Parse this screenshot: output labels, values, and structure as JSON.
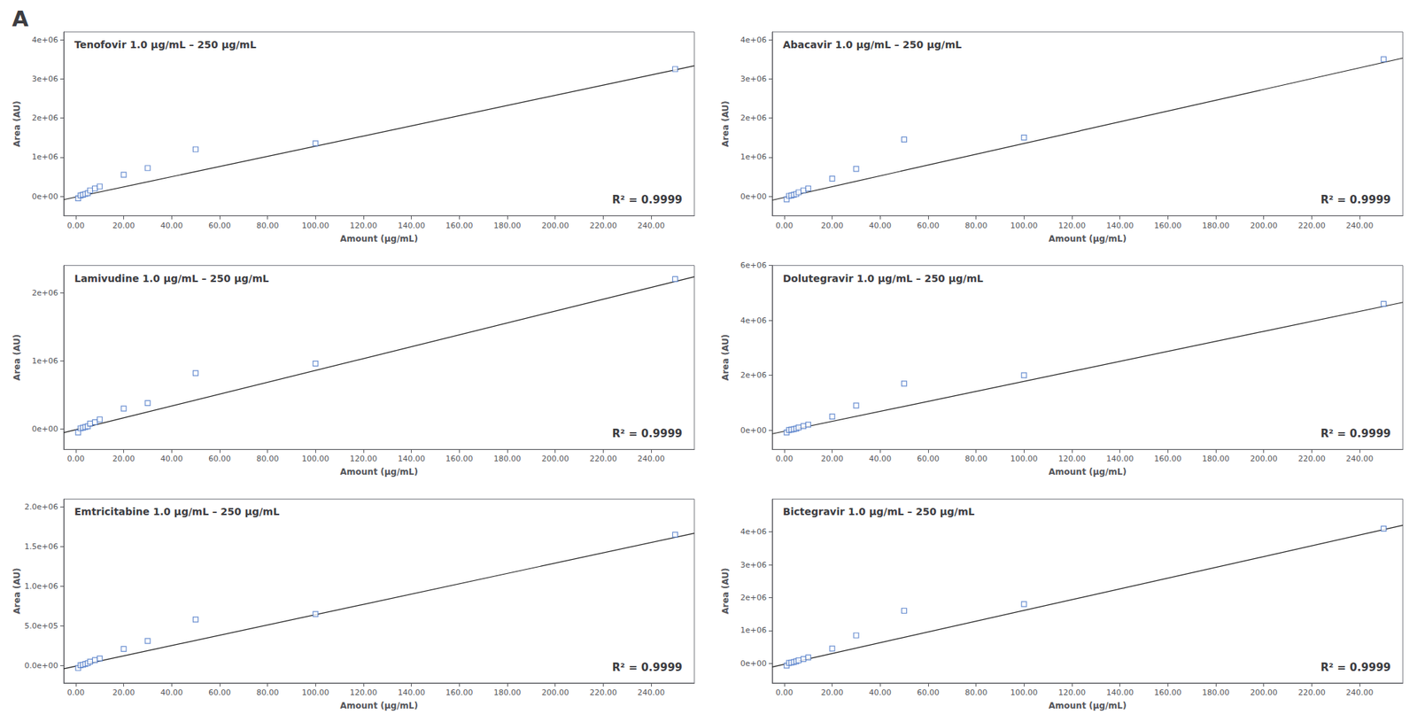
{
  "title": "A",
  "chart_data": [
    {
      "type": "scatter",
      "title": "Tenofovir 1.0 μg/mL – 250 μg/mL",
      "x_label": "Amount (μg/mL)",
      "y_label": "Area (AU)",
      "annotation": "R² = 0.9999",
      "grid": false,
      "xlim": [
        -5,
        258
      ],
      "xticks": [
        {
          "value": 0,
          "label": "0.00"
        },
        {
          "value": 20,
          "label": "20.00"
        },
        {
          "value": 40,
          "label": "40.00"
        },
        {
          "value": 60,
          "label": "60.00"
        },
        {
          "value": 80,
          "label": "80.00"
        },
        {
          "value": 100,
          "label": "100.00"
        },
        {
          "value": 120,
          "label": "120.00"
        },
        {
          "value": 140,
          "label": "140.00"
        },
        {
          "value": 160,
          "label": "160.00"
        },
        {
          "value": 180,
          "label": "180.00"
        },
        {
          "value": 200,
          "label": "200.00"
        },
        {
          "value": 220,
          "label": "220.00"
        },
        {
          "value": 240,
          "label": "240.00"
        }
      ],
      "ylim": [
        -500000,
        4200000
      ],
      "yticks": [
        {
          "value": 0,
          "label": "0e+00"
        },
        {
          "value": 1000000,
          "label": "1e+06"
        },
        {
          "value": 2000000,
          "label": "2e+06"
        },
        {
          "value": 3000000,
          "label": "3e+06"
        },
        {
          "value": 4000000,
          "label": "4e+06"
        }
      ],
      "series": [
        {
          "type": "line",
          "color": "#1a1a1a",
          "line_style": "solid",
          "x": [
            -5,
            258
          ],
          "values": [
            -85000,
            3334000
          ]
        },
        {
          "type": "scatter",
          "marker": "square",
          "color": "#4472C4",
          "x": [
            1.0,
            2.0,
            3.0,
            4.0,
            5.0,
            6.0,
            8.0,
            10.0,
            20.0,
            30.0,
            50.0,
            100.0,
            250.0
          ],
          "values": [
            -50000,
            20000,
            40000,
            60000,
            80000,
            150000,
            200000,
            250000,
            550000,
            720000,
            1200000,
            1350000,
            3250000
          ]
        }
      ]
    },
    {
      "type": "scatter",
      "title": "Abacavir 1.0 μg/mL – 250 μg/mL",
      "x_label": "Amount (μg/mL)",
      "y_label": "Area (AU)",
      "annotation": "R² = 0.9999",
      "grid": false,
      "xlim": [
        -5,
        258
      ],
      "xticks": [
        {
          "value": 0,
          "label": "0.00"
        },
        {
          "value": 20,
          "label": "20.00"
        },
        {
          "value": 40,
          "label": "40.00"
        },
        {
          "value": 60,
          "label": "60.00"
        },
        {
          "value": 80,
          "label": "80.00"
        },
        {
          "value": 100,
          "label": "100.00"
        },
        {
          "value": 120,
          "label": "120.00"
        },
        {
          "value": 140,
          "label": "140.00"
        },
        {
          "value": 160,
          "label": "160.00"
        },
        {
          "value": 180,
          "label": "180.00"
        },
        {
          "value": 200,
          "label": "200.00"
        },
        {
          "value": 220,
          "label": "220.00"
        },
        {
          "value": 240,
          "label": "240.00"
        }
      ],
      "ylim": [
        -500000,
        4200000
      ],
      "yticks": [
        {
          "value": 0,
          "label": "0e+00"
        },
        {
          "value": 1000000,
          "label": "1e+06"
        },
        {
          "value": 2000000,
          "label": "2e+06"
        },
        {
          "value": 3000000,
          "label": "3e+06"
        },
        {
          "value": 4000000,
          "label": "4e+06"
        }
      ],
      "series": [
        {
          "type": "line",
          "color": "#1a1a1a",
          "line_style": "solid",
          "x": [
            -5,
            258
          ],
          "values": [
            -99000,
            3530400
          ]
        },
        {
          "type": "scatter",
          "marker": "square",
          "color": "#4472C4",
          "x": [
            1.0,
            2.0,
            3.0,
            4.0,
            5.0,
            6.0,
            8.0,
            10.0,
            20.0,
            30.0,
            50.0,
            100.0,
            250.0
          ],
          "values": [
            -80000,
            10000,
            20000,
            40000,
            60000,
            100000,
            150000,
            200000,
            450000,
            700000,
            1450000,
            1500000,
            3500000
          ]
        }
      ]
    },
    {
      "type": "scatter",
      "title": "Lamivudine 1.0 μg/mL – 250 μg/mL",
      "x_label": "Amount (μg/mL)",
      "y_label": "Area (AU)",
      "annotation": "R² = 0.9999",
      "grid": false,
      "xlim": [
        -5,
        258
      ],
      "xticks": [
        {
          "value": 0,
          "label": "0.00"
        },
        {
          "value": 20,
          "label": "20.00"
        },
        {
          "value": 40,
          "label": "40.00"
        },
        {
          "value": 60,
          "label": "60.00"
        },
        {
          "value": 80,
          "label": "80.00"
        },
        {
          "value": 100,
          "label": "100.00"
        },
        {
          "value": 120,
          "label": "120.00"
        },
        {
          "value": 140,
          "label": "140.00"
        },
        {
          "value": 160,
          "label": "160.00"
        },
        {
          "value": 180,
          "label": "180.00"
        },
        {
          "value": 200,
          "label": "200.00"
        },
        {
          "value": 220,
          "label": "220.00"
        },
        {
          "value": 240,
          "label": "240.00"
        }
      ],
      "ylim": [
        -300000,
        2400000
      ],
      "yticks": [
        {
          "value": 0,
          "label": "0e+00"
        },
        {
          "value": 1000000,
          "label": "1e+06"
        },
        {
          "value": 2000000,
          "label": "2e+06"
        }
      ],
      "series": [
        {
          "type": "line",
          "color": "#1a1a1a",
          "line_style": "solid",
          "x": [
            -5,
            258
          ],
          "values": [
            -53500,
            2234600
          ]
        },
        {
          "type": "scatter",
          "marker": "square",
          "color": "#4472C4",
          "x": [
            1.0,
            2.0,
            3.0,
            4.0,
            5.0,
            6.0,
            8.0,
            10.0,
            20.0,
            30.0,
            50.0,
            100.0,
            250.0
          ],
          "values": [
            -50000,
            10000,
            20000,
            30000,
            40000,
            80000,
            100000,
            140000,
            300000,
            380000,
            820000,
            960000,
            2200000
          ]
        }
      ]
    },
    {
      "type": "scatter",
      "title": "Dolutegravir 1.0 μg/mL – 250 μg/mL",
      "x_label": "Amount (μg/mL)",
      "y_label": "Area (AU)",
      "annotation": "R² = 0.9999",
      "grid": false,
      "xlim": [
        -5,
        258
      ],
      "xticks": [
        {
          "value": 0,
          "label": "0.00"
        },
        {
          "value": 20,
          "label": "20.00"
        },
        {
          "value": 40,
          "label": "40.00"
        },
        {
          "value": 60,
          "label": "60.00"
        },
        {
          "value": 80,
          "label": "80.00"
        },
        {
          "value": 100,
          "label": "100.00"
        },
        {
          "value": 120,
          "label": "120.00"
        },
        {
          "value": 140,
          "label": "140.00"
        },
        {
          "value": 160,
          "label": "160.00"
        },
        {
          "value": 180,
          "label": "180.00"
        },
        {
          "value": 200,
          "label": "200.00"
        },
        {
          "value": 220,
          "label": "220.00"
        },
        {
          "value": 240,
          "label": "240.00"
        }
      ],
      "ylim": [
        -700000,
        6000000
      ],
      "yticks": [
        {
          "value": 0,
          "label": "0e+00"
        },
        {
          "value": 2000000,
          "label": "2e+06"
        },
        {
          "value": 4000000,
          "label": "4e+06"
        },
        {
          "value": 6000000,
          "label": "6e+06"
        }
      ],
      "series": [
        {
          "type": "line",
          "color": "#1a1a1a",
          "line_style": "solid",
          "x": [
            -5,
            258
          ],
          "values": [
            -131000,
            4655600
          ]
        },
        {
          "type": "scatter",
          "marker": "square",
          "color": "#4472C4",
          "x": [
            1.0,
            2.0,
            3.0,
            4.0,
            5.0,
            6.0,
            8.0,
            10.0,
            20.0,
            30.0,
            50.0,
            100.0,
            250.0
          ],
          "values": [
            -80000,
            10000,
            20000,
            40000,
            60000,
            100000,
            150000,
            200000,
            500000,
            900000,
            1700000,
            2000000,
            4600000
          ]
        }
      ]
    },
    {
      "type": "scatter",
      "title": "Emtricitabine 1.0 μg/mL – 250 μg/mL",
      "x_label": "Amount (μg/mL)",
      "y_label": "Area (AU)",
      "annotation": "R² = 0.9999",
      "grid": false,
      "xlim": [
        -5,
        258
      ],
      "xticks": [
        {
          "value": 0,
          "label": "0.00"
        },
        {
          "value": 20,
          "label": "20.00"
        },
        {
          "value": 40,
          "label": "40.00"
        },
        {
          "value": 60,
          "label": "60.00"
        },
        {
          "value": 80,
          "label": "80.00"
        },
        {
          "value": 100,
          "label": "100.00"
        },
        {
          "value": 120,
          "label": "120.00"
        },
        {
          "value": 140,
          "label": "140.00"
        },
        {
          "value": 160,
          "label": "160.00"
        },
        {
          "value": 180,
          "label": "180.00"
        },
        {
          "value": 200,
          "label": "200.00"
        },
        {
          "value": 220,
          "label": "220.00"
        },
        {
          "value": 240,
          "label": "240.00"
        }
      ],
      "ylim": [
        -220000,
        2100000
      ],
      "yticks": [
        {
          "value": 0,
          "label": "0.0e+00"
        },
        {
          "value": 500000,
          "label": "5.0e+05"
        },
        {
          "value": 1000000,
          "label": "1.0e+06"
        },
        {
          "value": 1500000,
          "label": "1.5e+06"
        },
        {
          "value": 2000000,
          "label": "2.0e+06"
        }
      ],
      "series": [
        {
          "type": "line",
          "color": "#1a1a1a",
          "line_style": "solid",
          "x": [
            -5,
            258
          ],
          "values": [
            -40500,
            1669000
          ]
        },
        {
          "type": "scatter",
          "marker": "square",
          "color": "#4472C4",
          "x": [
            1.0,
            2.0,
            3.0,
            4.0,
            5.0,
            6.0,
            8.0,
            10.0,
            20.0,
            30.0,
            50.0,
            100.0,
            250.0
          ],
          "values": [
            -30000,
            5000,
            10000,
            20000,
            30000,
            50000,
            70000,
            90000,
            210000,
            310000,
            580000,
            650000,
            1650000
          ]
        }
      ]
    },
    {
      "type": "scatter",
      "title": "Bictegravir 1.0 μg/mL – 250 μg/mL",
      "x_label": "Amount (μg/mL)",
      "y_label": "Area (AU)",
      "annotation": "R² = 0.9999",
      "grid": false,
      "xlim": [
        -5,
        258
      ],
      "xticks": [
        {
          "value": 0,
          "label": "0.00"
        },
        {
          "value": 20,
          "label": "20.00"
        },
        {
          "value": 40,
          "label": "40.00"
        },
        {
          "value": 60,
          "label": "60.00"
        },
        {
          "value": 80,
          "label": "80.00"
        },
        {
          "value": 100,
          "label": "100.00"
        },
        {
          "value": 120,
          "label": "120.00"
        },
        {
          "value": 140,
          "label": "140.00"
        },
        {
          "value": 160,
          "label": "160.00"
        },
        {
          "value": 180,
          "label": "180.00"
        },
        {
          "value": 200,
          "label": "200.00"
        },
        {
          "value": 220,
          "label": "220.00"
        },
        {
          "value": 240,
          "label": "240.00"
        }
      ],
      "ylim": [
        -600000,
        5000000
      ],
      "yticks": [
        {
          "value": 0,
          "label": "0e+00"
        },
        {
          "value": 1000000,
          "label": "1e+06"
        },
        {
          "value": 2000000,
          "label": "2e+06"
        },
        {
          "value": 3000000,
          "label": "3e+06"
        },
        {
          "value": 4000000,
          "label": "4e+06"
        }
      ],
      "series": [
        {
          "type": "line",
          "color": "#1a1a1a",
          "line_style": "solid",
          "x": [
            -5,
            258
          ],
          "values": [
            -112000,
            4201200
          ]
        },
        {
          "type": "scatter",
          "marker": "square",
          "color": "#4472C4",
          "x": [
            1.0,
            2.0,
            3.0,
            4.0,
            5.0,
            6.0,
            8.0,
            10.0,
            20.0,
            30.0,
            50.0,
            100.0,
            250.0
          ],
          "values": [
            -70000,
            10000,
            20000,
            40000,
            60000,
            90000,
            130000,
            180000,
            450000,
            850000,
            1600000,
            1800000,
            4100000
          ]
        }
      ]
    }
  ]
}
